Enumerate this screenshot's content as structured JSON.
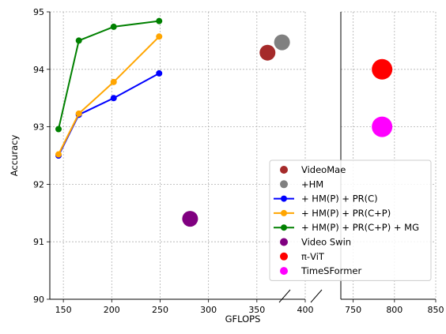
{
  "chart_data": {
    "type": "scatter",
    "xlabel": "GFLOPS",
    "ylabel": "Accuracy",
    "ylim": [
      90,
      95
    ],
    "yticks": [
      90,
      91,
      92,
      93,
      94,
      95
    ],
    "grid": true,
    "legend_placement": "lower-right",
    "panels": [
      {
        "name": "left",
        "xlim": [
          136,
          400
        ],
        "xticks": [
          150,
          200,
          250,
          300,
          350,
          400
        ]
      },
      {
        "name": "right",
        "xlim": [
          735,
          850
        ],
        "xticks": [
          750,
          800,
          850
        ]
      }
    ],
    "series": [
      {
        "name": "VideoMae",
        "kind": "point",
        "color": "#a52a2a",
        "x": [
          361
        ],
        "y": [
          94.29
        ],
        "size": "large"
      },
      {
        "name": "+HM",
        "kind": "point",
        "color": "#808080",
        "x": [
          376
        ],
        "y": [
          94.47
        ],
        "size": "large"
      },
      {
        "name": "+ HM(P) + PR(C)",
        "kind": "line",
        "color": "#0000ff",
        "x": [
          145,
          166,
          202,
          249
        ],
        "y": [
          92.5,
          93.21,
          93.5,
          93.93
        ]
      },
      {
        "name": "+ HM(P) + PR(C+P)",
        "kind": "line",
        "color": "#ffa500",
        "x": [
          145,
          166,
          202,
          249
        ],
        "y": [
          92.52,
          93.23,
          93.78,
          94.57
        ]
      },
      {
        "name": "+ HM(P) + PR(C+P) + MG",
        "kind": "line",
        "color": "#008000",
        "x": [
          145,
          166,
          202,
          249
        ],
        "y": [
          92.96,
          94.5,
          94.74,
          94.84
        ]
      },
      {
        "name": "Video Swin",
        "kind": "point",
        "color": "#800080",
        "x": [
          281
        ],
        "y": [
          91.4
        ],
        "size": "large"
      },
      {
        "name": "π-ViT",
        "kind": "point",
        "color": "#ff0000",
        "x": [
          785
        ],
        "y": [
          94.0
        ],
        "size": "xlarge"
      },
      {
        "name": "TimeSFormer",
        "kind": "point",
        "color": "#ff00ff",
        "x": [
          785
        ],
        "y": [
          93.0
        ],
        "size": "xlarge"
      }
    ]
  }
}
